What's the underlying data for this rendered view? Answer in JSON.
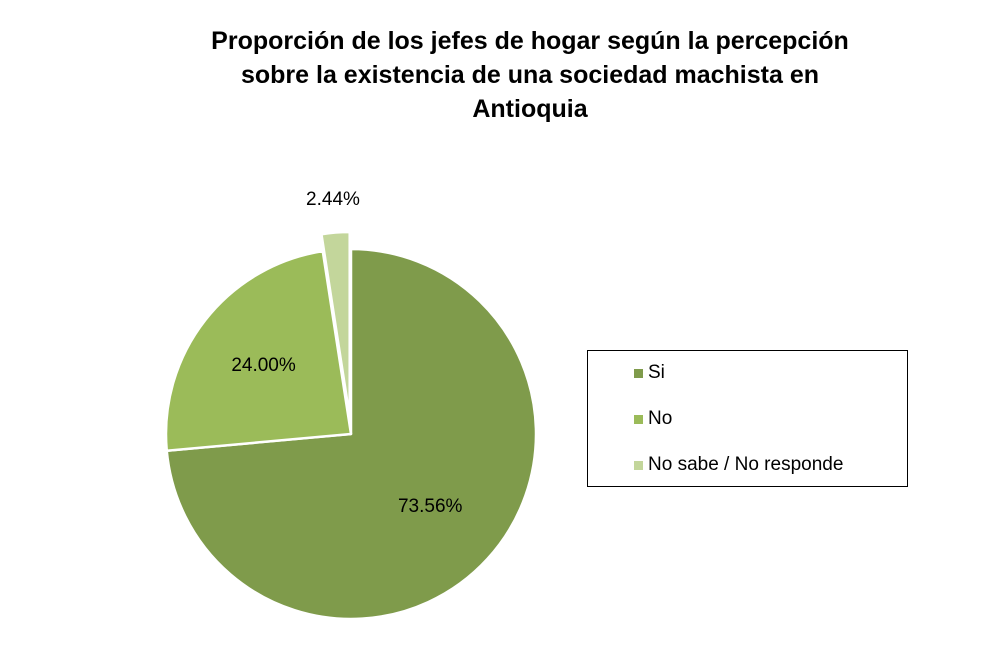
{
  "chart_data": {
    "type": "pie",
    "title_lines": [
      "Proporción de los jefes de hogar según la percepción",
      "sobre la existencia de una sociedad machista  en",
      "Antioquia"
    ],
    "series": [
      {
        "values": [
          73.56,
          24.0,
          2.44
        ],
        "labels": [
          "73.56%",
          "24.00%",
          "2.44%"
        ]
      }
    ],
    "categories": [
      "Si",
      "No",
      "No sabe / No responde"
    ],
    "colors": [
      "#7f9b4b",
      "#9bbb59",
      "#c3d69b"
    ],
    "exploded": [
      false,
      false,
      true
    ],
    "legend_position": "right"
  }
}
